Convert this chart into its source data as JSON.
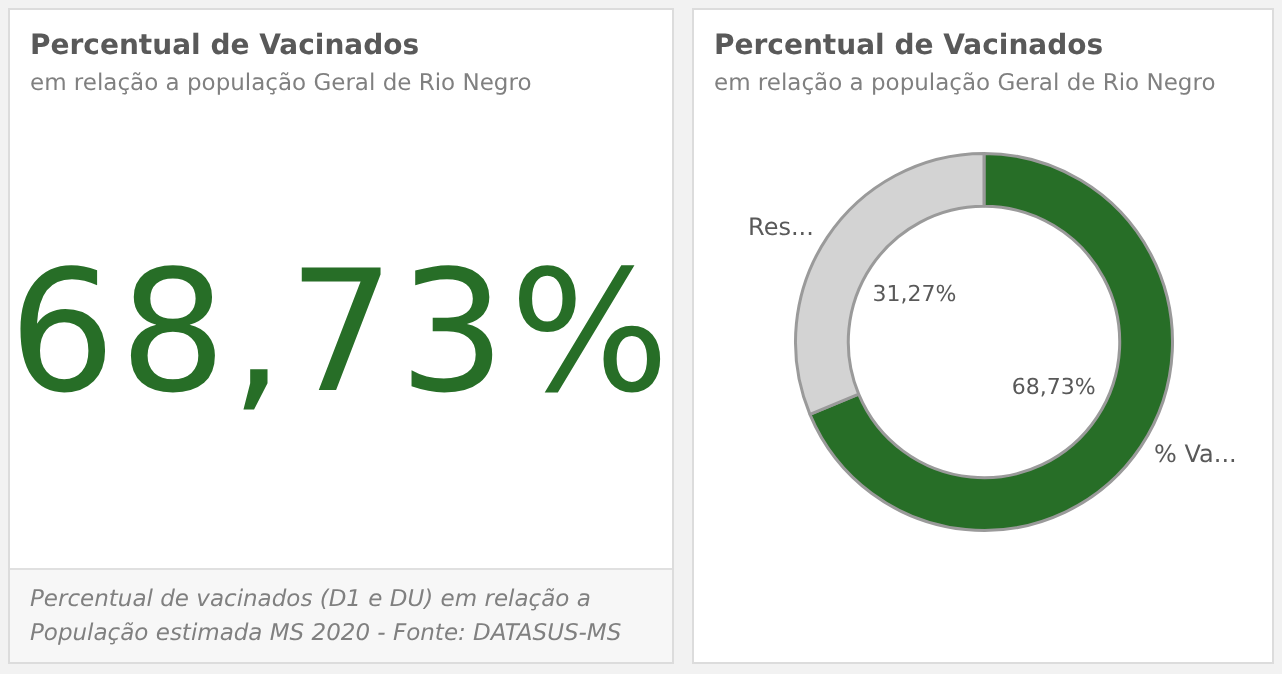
{
  "chart_data": [
    {
      "type": "other",
      "title": "Percentual de Vacinados",
      "subtitle": "em relação a população Geral de Rio Negro",
      "annotations": [
        "68,73%",
        "Percentual de vacinados (D1 e DU) em relação a População estimada MS 2020 - Fonte: DATASUS-MS"
      ]
    },
    {
      "type": "donut",
      "title": "Percentual de Vacinados",
      "subtitle": "em relação a população Geral de Rio Negro",
      "categories": [
        "% Va...",
        "Res..."
      ],
      "values": [
        68.73,
        31.27
      ],
      "colors": [
        "#276e27",
        "#d3d3d3"
      ],
      "value_labels": [
        "68,73%",
        "31,27%"
      ]
    }
  ]
}
